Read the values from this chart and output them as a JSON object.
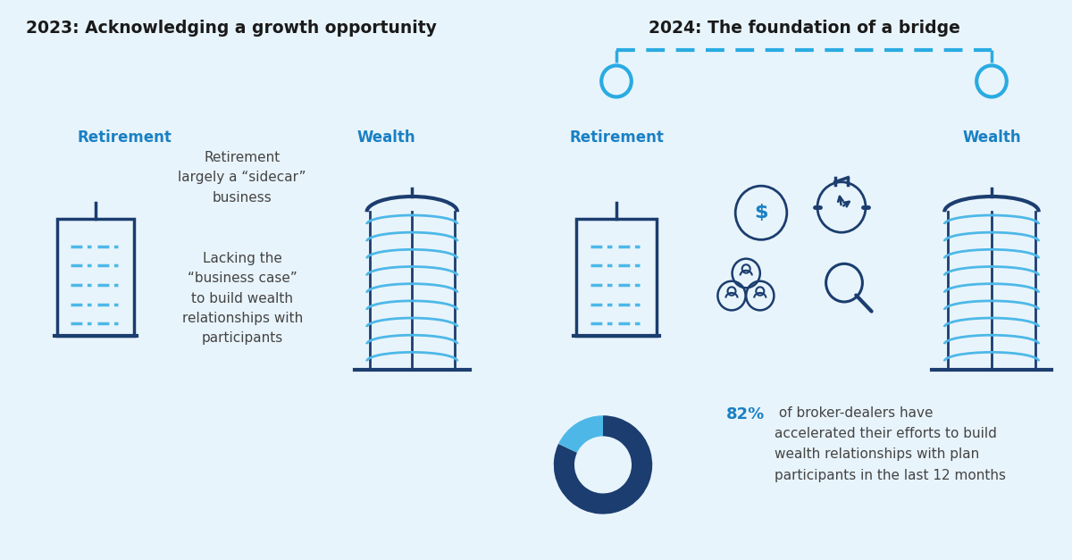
{
  "left_title": "2023: Acknowledging a growth opportunity",
  "right_title": "2024: The foundation of a bridge",
  "left_retirement_label": "Retirement",
  "left_wealth_label": "Wealth",
  "right_retirement_label": "Retirement",
  "right_wealth_label": "Wealth",
  "left_text1": "Retirement\nlargely a “sidecar”\nbusiness",
  "left_text2": "Lacking the\n“business case”\nto build wealth\nrelationships with\nparticipants",
  "pie_pct": 82,
  "pie_text_bold": "82%",
  "pie_text_normal": " of broker-dealers have\naccelerated their efforts to build\nwealth relationships with plan\nparticipants in the last 12 months",
  "bg_color": "#e8f4fb",
  "dark_blue": "#1b3d6f",
  "mid_blue": "#1a80c4",
  "light_blue": "#4db8e8",
  "bridge_blue": "#29abe2",
  "title_color": "#1a1a1a",
  "label_color": "#1a80c4",
  "text_color": "#444444",
  "pie_dark": "#1b3d6f",
  "pie_light": "#4db8e8"
}
